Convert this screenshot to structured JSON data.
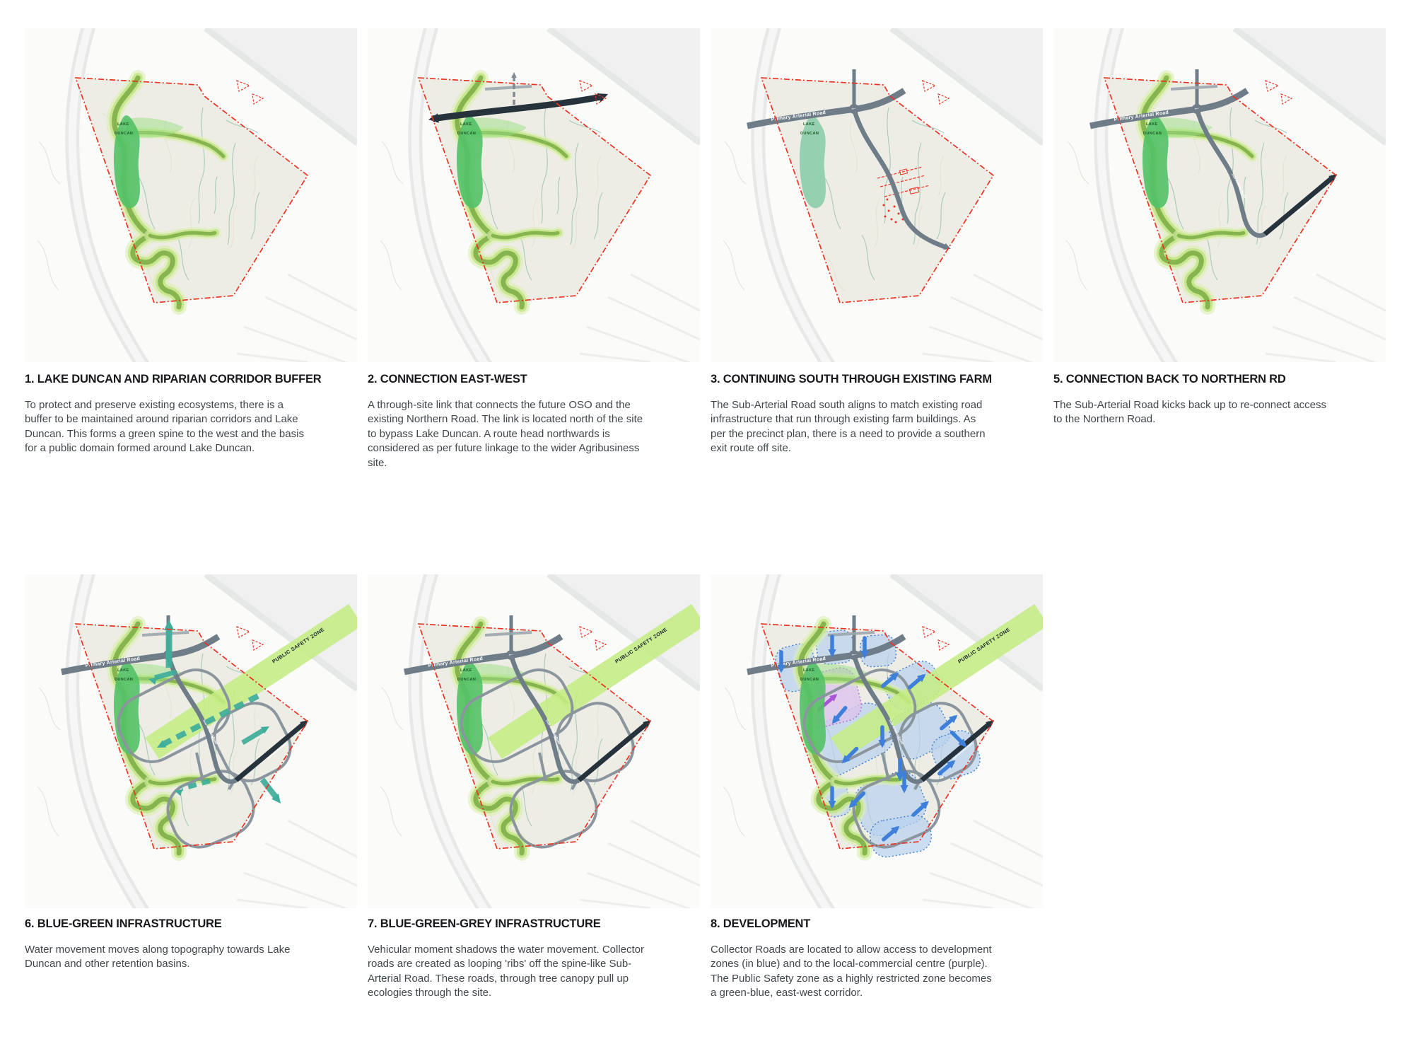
{
  "labels": {
    "lake_line1": "LAKE",
    "lake_line2": "DUNCAN",
    "primary_road": "Primary Arterial Road",
    "sub_road": "Sub-Arterial Road",
    "safety_zone": "PUBLIC SAFETY ZONE"
  },
  "colors": {
    "boundary_red": "#ec3323",
    "corridor_core": "#83b14c",
    "corridor_mid": "#c2e584",
    "corridor_light": "#dcefb2",
    "lake_green": "#53c167",
    "lake_teal": "#89cdab",
    "road_grey": "#6f7d89",
    "loop_grey": "#8a959d",
    "dark_navy": "#26333d",
    "water_teal": "#3fae9b",
    "safety_green": "#c6ed85",
    "dev_blue_fill": "#b9d1ed",
    "dev_blue_border": "#3e7fd0",
    "arrow_blue": "#3d7fd9",
    "commercial_purple_fill": "#dcc3ec",
    "commercial_purple_border": "#b06fd0",
    "purple_arrow": "#a855d8",
    "site_fill": "#edece3",
    "lake_label_green": "#1e5a2a"
  },
  "panels": [
    {
      "id": "1",
      "title": "1. LAKE DUNCAN AND  RIPARIAN CORRIDOR BUFFER",
      "body": "To protect and preserve existing ecosystems, there is a buffer to be maintained around riparian corridors and Lake Duncan. This forms a green spine to the west and the basis for a public domain formed around Lake Duncan.",
      "map_features": [
        "base",
        "corridor",
        "lake-green",
        "boundary"
      ]
    },
    {
      "id": "2",
      "title": "2. CONNECTION EAST-WEST",
      "body": "A through-site link that connects the future OSO and the existing Northern Road. The link is located north of the site to bypass Lake Duncan. A route head northwards is considered as per future linkage to the wider Agribusiness site.",
      "map_features": [
        "base",
        "corridor",
        "lake-green",
        "top-stub",
        "ew-arrow",
        "north-dashed-arrow",
        "boundary"
      ]
    },
    {
      "id": "3",
      "title": "3. CONTINUING SOUTH THROUGH EXISTING FARM",
      "body": "The Sub-Arterial Road south aligns to match existing road infrastructure that run through existing farm buildings. As per the precinct plan, there is a need to provide a southern exit route off site.",
      "map_features": [
        "base",
        "lake-teal",
        "farm-marks",
        "arterial",
        "north-stub",
        "sub-arterial-exit",
        "boundary"
      ]
    },
    {
      "id": "5",
      "title": "5. CONNECTION BACK TO NORTHERN RD",
      "body": "The Sub-Arterial Road kicks back up to re-connect access to the Northern Road.",
      "map_features": [
        "base",
        "corridor",
        "lake-green",
        "arterial",
        "north-stub",
        "top-stub",
        "sub-arterial",
        "sub-label",
        "dark-ne-road",
        "boundary"
      ]
    },
    {
      "id": "6",
      "title": "6. BLUE-GREEN INFRASTRUCTURE",
      "body": "Water movement moves along topography towards Lake Duncan and other retention basins.",
      "map_features": [
        "base",
        "corridor",
        "lake-green",
        "safety-zone",
        "collector-loops",
        "arterial",
        "north-stub",
        "top-stub",
        "sub-arterial",
        "sub-label",
        "dark-ne-road",
        "water-arrows",
        "boundary"
      ]
    },
    {
      "id": "7",
      "title": "7. BLUE-GREEN-GREY INFRASTRUCTURE",
      "body": "Vehicular moment shadows the water movement. Collector roads are created as looping 'ribs' off the spine-like Sub-Arterial Road. These roads, through tree canopy pull up ecologies through the site.",
      "map_features": [
        "base",
        "corridor",
        "lake-green",
        "safety-zone",
        "collector-loops",
        "arterial",
        "north-stub",
        "top-stub",
        "sub-arterial",
        "sub-label",
        "dark-ne-road",
        "boundary"
      ]
    },
    {
      "id": "8",
      "title": "8. DEVELOPMENT",
      "body": "Collector Roads are located to allow access to development zones (in blue) and to the local-commercial centre (purple). The Public Safety zone as a highly restricted zone becomes a green-blue, east-west corridor.",
      "map_features": [
        "base",
        "dev-zones",
        "commercial-zone",
        "corridor",
        "lake-green",
        "safety-zone",
        "collector-loops",
        "arterial",
        "north-stub",
        "top-stub",
        "sub-arterial",
        "sub-label",
        "dark-ne-road",
        "dev-arrows",
        "boundary"
      ]
    }
  ]
}
